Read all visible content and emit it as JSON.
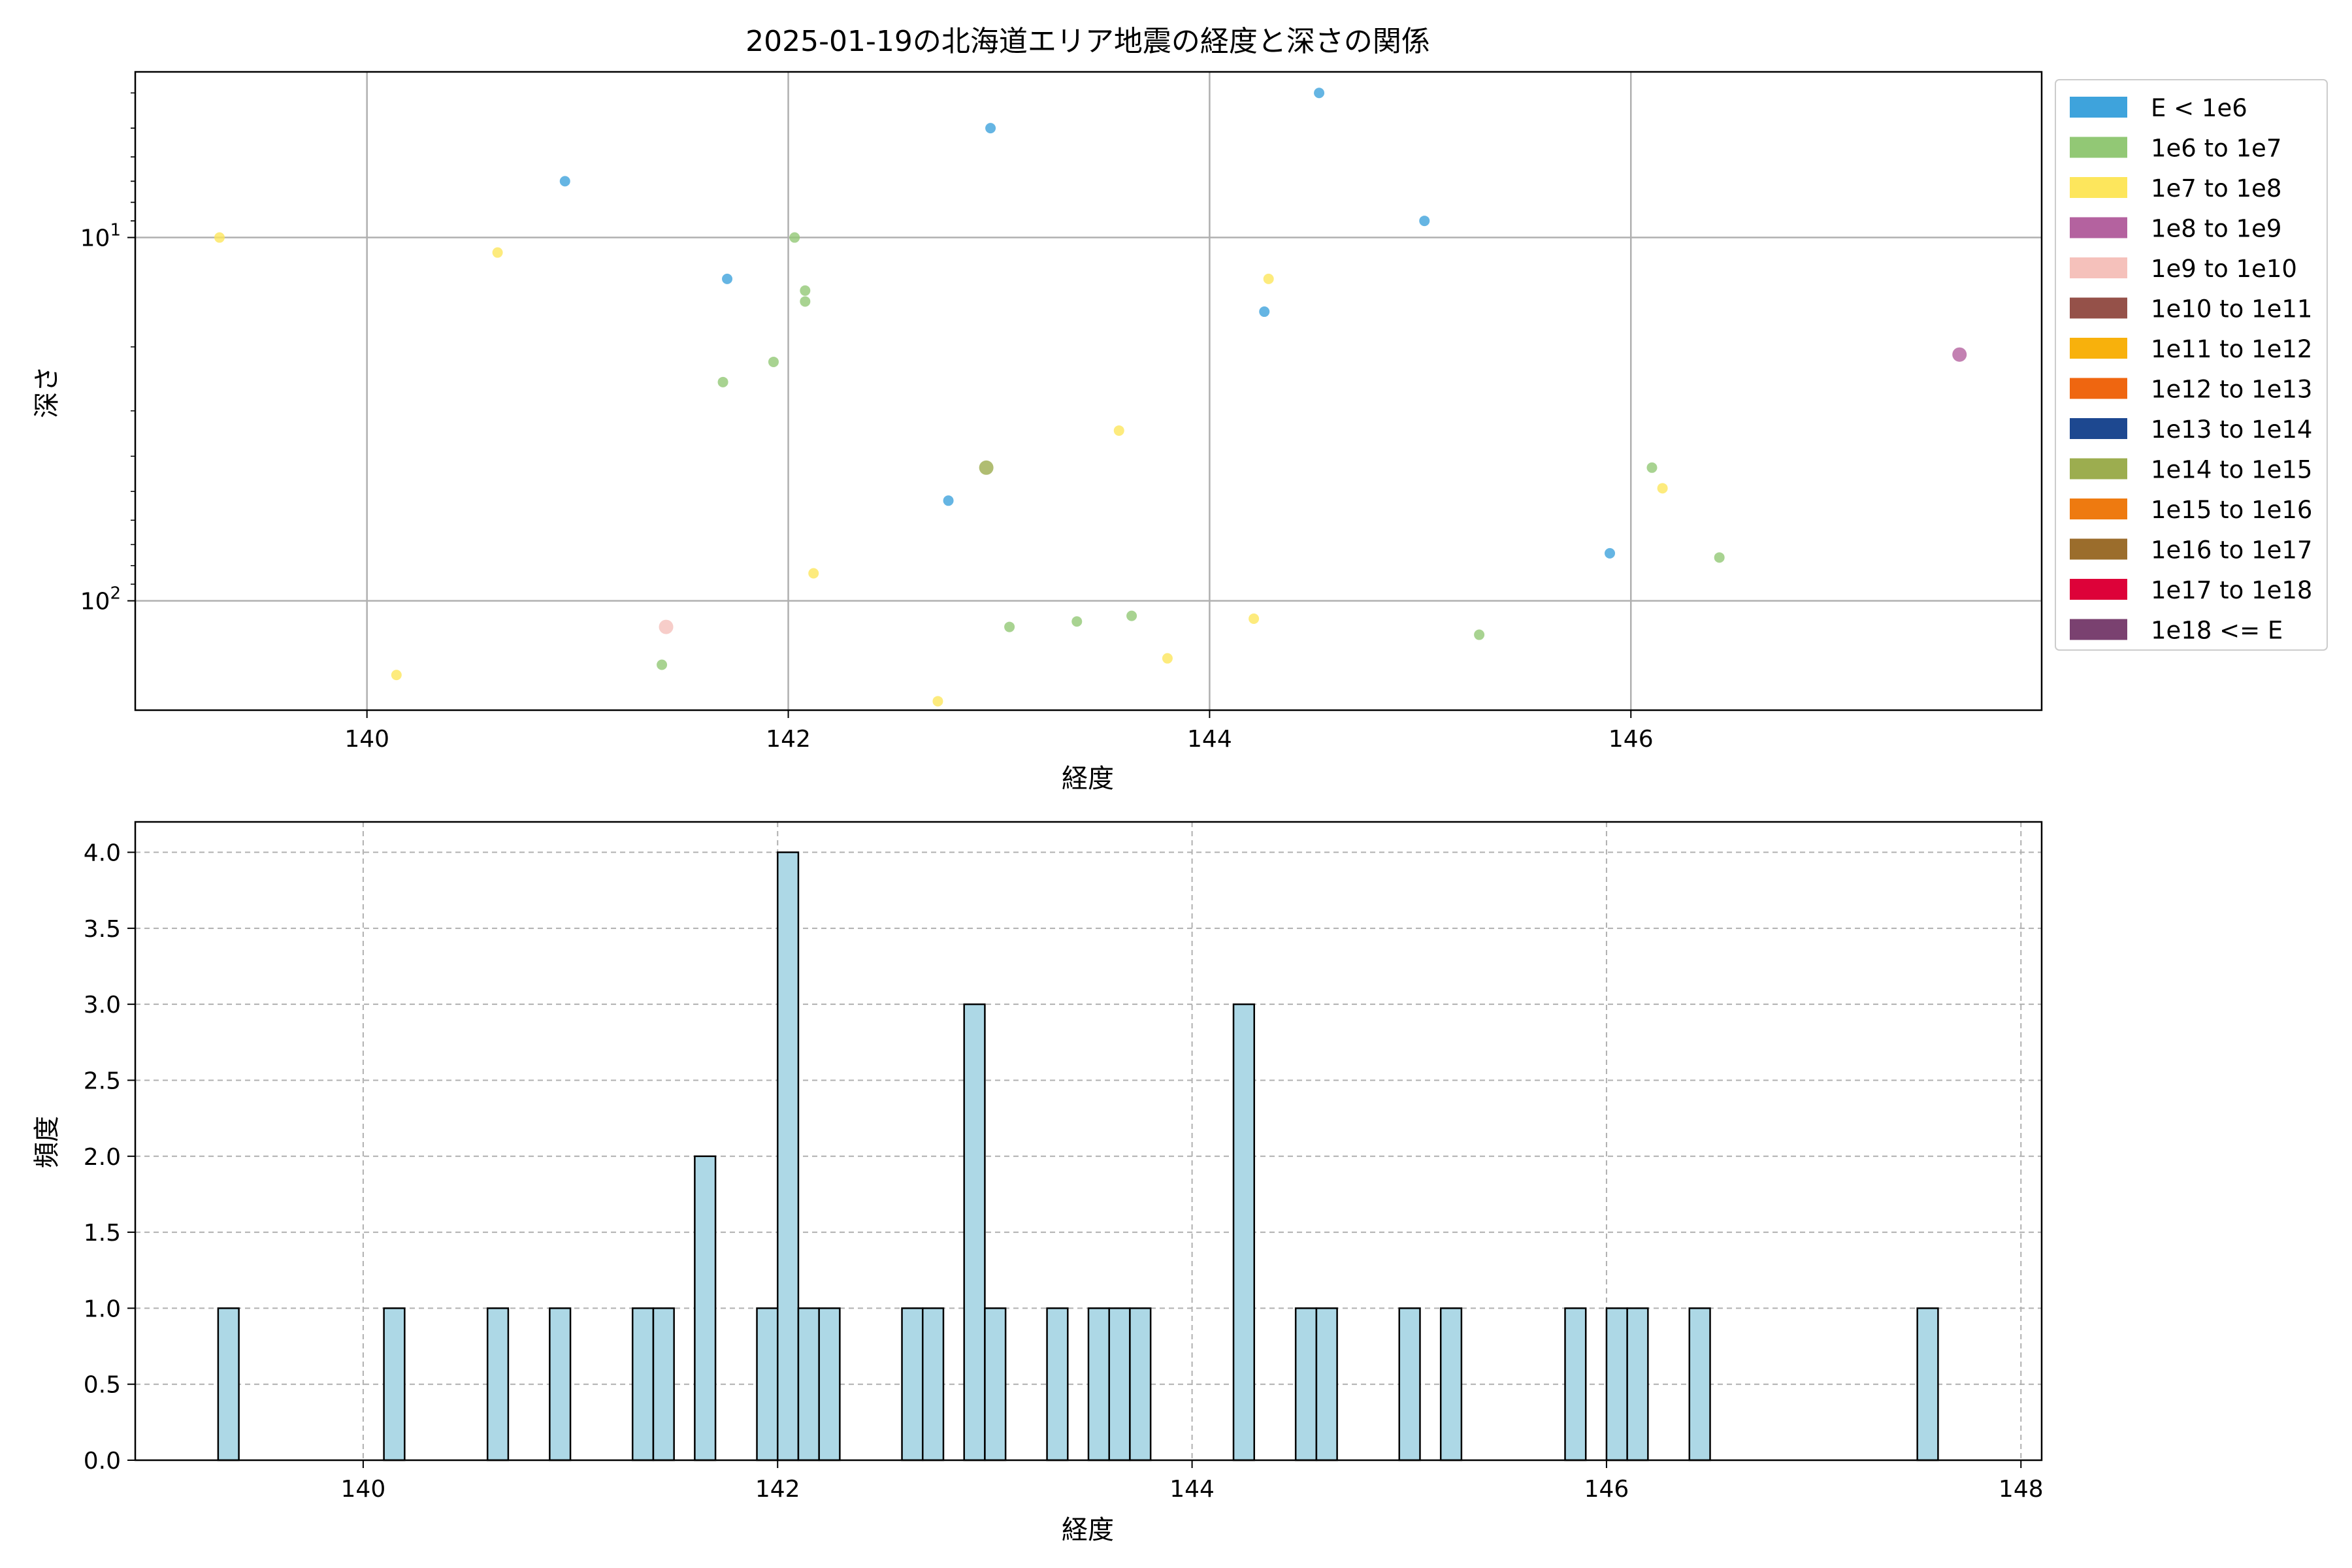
{
  "chart_data": [
    {
      "type": "scatter",
      "title": "2025-01-19の北海道エリア地震の経度と深さの関係",
      "xlabel": "経度",
      "ylabel": "深さ",
      "xlim": [
        138.9,
        147.95
      ],
      "ylim": [
        200,
        3.5
      ],
      "yscale": "log",
      "y_inverted": true,
      "xticks": [
        {
          "value": 140,
          "label": "140"
        },
        {
          "value": 142,
          "label": "142"
        },
        {
          "value": 144,
          "label": "144"
        },
        {
          "value": 146,
          "label": "146"
        }
      ],
      "yticks": [
        {
          "value": 10,
          "base": "10",
          "exp": "1"
        },
        {
          "value": 100,
          "base": "10",
          "exp": "2"
        }
      ],
      "grid": true,
      "legend_position": "outside-right",
      "legend": [
        {
          "label": "E < 1e6",
          "color": "#3ea3dc"
        },
        {
          "label": "1e6 to 1e7",
          "color": "#92c875"
        },
        {
          "label": "1e7 to 1e8",
          "color": "#fde65c"
        },
        {
          "label": "1e8 to 1e9",
          "color": "#b4629f"
        },
        {
          "label": "1e9 to 1e10",
          "color": "#f5c1bb"
        },
        {
          "label": "1e10 to 1e11",
          "color": "#955149"
        },
        {
          "label": "1e11 to 1e12",
          "color": "#f8b10c"
        },
        {
          "label": "1e12 to 1e13",
          "color": "#ef6610"
        },
        {
          "label": "1e13 to 1e14",
          "color": "#1d4890"
        },
        {
          "label": "1e14 to 1e15",
          "color": "#9cad4f"
        },
        {
          "label": "1e15 to 1e16",
          "color": "#ee7a10"
        },
        {
          "label": "1e16 to 1e17",
          "color": "#9b6d2c"
        },
        {
          "label": "1e17 to 1e18",
          "color": "#dd0239"
        },
        {
          "label": "1e18 <= E",
          "color": "#7a4170"
        }
      ],
      "series": [
        {
          "energy_class": "E < 1e6",
          "color": "#3ea3dc",
          "points": [
            [
              140.94,
              7
            ],
            [
              141.71,
              13
            ],
            [
              142.96,
              5
            ],
            [
              142.76,
              53
            ],
            [
              144.26,
              16
            ],
            [
              144.52,
              4
            ],
            [
              145.02,
              9
            ],
            [
              145.9,
              74
            ]
          ]
        },
        {
          "energy_class": "1e6 to 1e7",
          "color": "#92c875",
          "points": [
            [
              141.4,
              150
            ],
            [
              141.69,
              25
            ],
            [
              141.93,
              22
            ],
            [
              142.03,
              10
            ],
            [
              142.08,
              14
            ],
            [
              142.08,
              15
            ],
            [
              143.05,
              118
            ],
            [
              143.37,
              114
            ],
            [
              143.63,
              110
            ],
            [
              145.28,
              124
            ],
            [
              146.1,
              43
            ],
            [
              146.42,
              76
            ]
          ]
        },
        {
          "energy_class": "1e7 to 1e8",
          "color": "#fde65c",
          "points": [
            [
              139.3,
              10
            ],
            [
              140.14,
              160
            ],
            [
              140.62,
              11
            ],
            [
              142.12,
              84
            ],
            [
              142.71,
              189
            ],
            [
              143.57,
              34
            ],
            [
              143.8,
              144
            ],
            [
              144.21,
              112
            ],
            [
              144.28,
              13
            ],
            [
              146.15,
              49
            ]
          ]
        },
        {
          "energy_class": "1e8 to 1e9",
          "color": "#b4629f",
          "points": [
            [
              147.56,
              21
            ]
          ]
        },
        {
          "energy_class": "1e9 to 1e10",
          "color": "#f5c1bb",
          "points": [
            [
              141.42,
              118
            ]
          ]
        },
        {
          "energy_class": "1e14 to 1e15",
          "color": "#9cad4f",
          "points": [
            [
              142.94,
              43
            ]
          ]
        }
      ]
    },
    {
      "type": "bar",
      "subtype": "histogram",
      "xlabel": "経度",
      "ylabel": "頻度",
      "xlim": [
        138.9,
        148.1
      ],
      "ylim": [
        0,
        4.2
      ],
      "bin_width": 0.1,
      "bar_color": "#add8e6",
      "edge_color": "#000000",
      "grid": true,
      "xticks": [
        {
          "value": 140,
          "label": "140"
        },
        {
          "value": 142,
          "label": "142"
        },
        {
          "value": 144,
          "label": "144"
        },
        {
          "value": 146,
          "label": "146"
        },
        {
          "value": 148,
          "label": "148"
        }
      ],
      "yticks": [
        {
          "value": 0,
          "label": "0.0"
        },
        {
          "value": 0.5,
          "label": "0.5"
        },
        {
          "value": 1,
          "label": "1.0"
        },
        {
          "value": 1.5,
          "label": "1.5"
        },
        {
          "value": 2,
          "label": "2.0"
        },
        {
          "value": 2.5,
          "label": "2.5"
        },
        {
          "value": 3,
          "label": "3.0"
        },
        {
          "value": 3.5,
          "label": "3.5"
        },
        {
          "value": 4,
          "label": "4.0"
        }
      ],
      "bins": [
        {
          "x": 139.3,
          "count": 1
        },
        {
          "x": 140.1,
          "count": 1
        },
        {
          "x": 140.6,
          "count": 1
        },
        {
          "x": 140.9,
          "count": 1
        },
        {
          "x": 141.3,
          "count": 1
        },
        {
          "x": 141.4,
          "count": 1
        },
        {
          "x": 141.6,
          "count": 2
        },
        {
          "x": 141.9,
          "count": 1
        },
        {
          "x": 142.0,
          "count": 4
        },
        {
          "x": 142.1,
          "count": 1
        },
        {
          "x": 142.2,
          "count": 1
        },
        {
          "x": 142.6,
          "count": 1
        },
        {
          "x": 142.7,
          "count": 1
        },
        {
          "x": 142.9,
          "count": 3
        },
        {
          "x": 143.0,
          "count": 1
        },
        {
          "x": 143.3,
          "count": 1
        },
        {
          "x": 143.5,
          "count": 1
        },
        {
          "x": 143.6,
          "count": 1
        },
        {
          "x": 143.7,
          "count": 1
        },
        {
          "x": 144.2,
          "count": 3
        },
        {
          "x": 144.5,
          "count": 1
        },
        {
          "x": 144.6,
          "count": 1
        },
        {
          "x": 145.0,
          "count": 1
        },
        {
          "x": 145.2,
          "count": 1
        },
        {
          "x": 145.8,
          "count": 1
        },
        {
          "x": 146.0,
          "count": 1
        },
        {
          "x": 146.1,
          "count": 1
        },
        {
          "x": 146.4,
          "count": 1
        },
        {
          "x": 147.5,
          "count": 1
        }
      ]
    }
  ]
}
